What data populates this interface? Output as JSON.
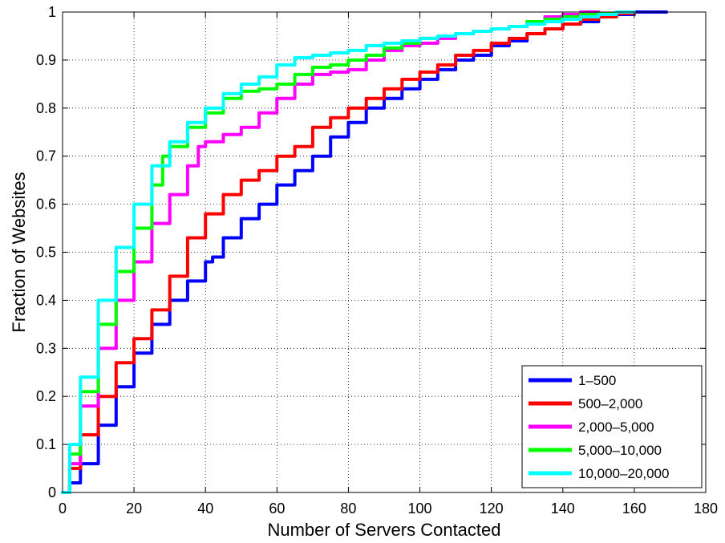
{
  "chart_data": {
    "type": "line",
    "title": "",
    "xlabel": "Number of Servers Contacted",
    "ylabel": "Fraction of Websites",
    "xlim": [
      0,
      180
    ],
    "ylim": [
      0,
      1
    ],
    "xticks": [
      0,
      20,
      40,
      60,
      80,
      100,
      120,
      140,
      160,
      180
    ],
    "yticks": [
      0,
      0.1,
      0.2,
      0.3,
      0.4,
      0.5,
      0.6,
      0.7,
      0.8,
      0.9,
      1
    ],
    "xtick_labels": [
      "0",
      "20",
      "40",
      "60",
      "80",
      "100",
      "120",
      "140",
      "160",
      "180"
    ],
    "ytick_labels": [
      "0",
      "0.1",
      "0.2",
      "0.3",
      "0.4",
      "0.5",
      "0.6",
      "0.7",
      "0.8",
      "0.9",
      "1"
    ],
    "grid": true,
    "legend_position": "bottom-right",
    "series": [
      {
        "name": "1–500",
        "color": "#0000ff",
        "points": [
          [
            0,
            0
          ],
          [
            2,
            0.02
          ],
          [
            5,
            0.06
          ],
          [
            10,
            0.14
          ],
          [
            15,
            0.22
          ],
          [
            20,
            0.29
          ],
          [
            25,
            0.35
          ],
          [
            30,
            0.4
          ],
          [
            35,
            0.44
          ],
          [
            40,
            0.48
          ],
          [
            42,
            0.49
          ],
          [
            45,
            0.53
          ],
          [
            50,
            0.57
          ],
          [
            55,
            0.6
          ],
          [
            60,
            0.64
          ],
          [
            65,
            0.67
          ],
          [
            70,
            0.7
          ],
          [
            75,
            0.74
          ],
          [
            80,
            0.77
          ],
          [
            85,
            0.8
          ],
          [
            90,
            0.82
          ],
          [
            95,
            0.84
          ],
          [
            100,
            0.86
          ],
          [
            105,
            0.88
          ],
          [
            110,
            0.9
          ],
          [
            115,
            0.91
          ],
          [
            120,
            0.93
          ],
          [
            125,
            0.94
          ],
          [
            130,
            0.955
          ],
          [
            135,
            0.965
          ],
          [
            140,
            0.975
          ],
          [
            145,
            0.98
          ],
          [
            150,
            0.99
          ],
          [
            155,
            0.995
          ],
          [
            160,
            1.0
          ],
          [
            169,
            1.0
          ]
        ]
      },
      {
        "name": "500–2,000",
        "color": "#ff0000",
        "points": [
          [
            0,
            0
          ],
          [
            2,
            0.05
          ],
          [
            5,
            0.12
          ],
          [
            10,
            0.2
          ],
          [
            15,
            0.27
          ],
          [
            20,
            0.32
          ],
          [
            25,
            0.38
          ],
          [
            30,
            0.45
          ],
          [
            35,
            0.53
          ],
          [
            40,
            0.58
          ],
          [
            45,
            0.62
          ],
          [
            50,
            0.65
          ],
          [
            55,
            0.67
          ],
          [
            60,
            0.7
          ],
          [
            65,
            0.72
          ],
          [
            70,
            0.76
          ],
          [
            75,
            0.78
          ],
          [
            80,
            0.8
          ],
          [
            85,
            0.82
          ],
          [
            90,
            0.84
          ],
          [
            95,
            0.86
          ],
          [
            100,
            0.875
          ],
          [
            105,
            0.89
          ],
          [
            110,
            0.91
          ],
          [
            115,
            0.92
          ],
          [
            120,
            0.935
          ],
          [
            125,
            0.945
          ],
          [
            130,
            0.955
          ],
          [
            135,
            0.965
          ],
          [
            140,
            0.975
          ],
          [
            145,
            0.985
          ],
          [
            150,
            0.99
          ],
          [
            155,
            0.997
          ],
          [
            160,
            1.0
          ]
        ]
      },
      {
        "name": "2,000–5,000",
        "color": "#ff00ff",
        "points": [
          [
            0,
            0
          ],
          [
            2,
            0.06
          ],
          [
            5,
            0.18
          ],
          [
            10,
            0.3
          ],
          [
            15,
            0.4
          ],
          [
            20,
            0.48
          ],
          [
            25,
            0.56
          ],
          [
            30,
            0.62
          ],
          [
            35,
            0.68
          ],
          [
            38,
            0.72
          ],
          [
            40,
            0.73
          ],
          [
            45,
            0.745
          ],
          [
            50,
            0.76
          ],
          [
            55,
            0.79
          ],
          [
            60,
            0.82
          ],
          [
            65,
            0.85
          ],
          [
            70,
            0.87
          ],
          [
            75,
            0.875
          ],
          [
            80,
            0.88
          ],
          [
            85,
            0.9
          ],
          [
            90,
            0.92
          ],
          [
            95,
            0.93
          ],
          [
            100,
            0.935
          ],
          [
            105,
            0.945
          ],
          [
            110,
            0.955
          ],
          [
            115,
            0.96
          ],
          [
            120,
            0.965
          ],
          [
            125,
            0.97
          ],
          [
            130,
            0.98
          ],
          [
            135,
            0.99
          ],
          [
            140,
            0.995
          ],
          [
            145,
            1.0
          ],
          [
            150,
            1.0
          ]
        ]
      },
      {
        "name": "5,000–10,000",
        "color": "#00ff00",
        "points": [
          [
            0,
            0
          ],
          [
            2,
            0.08
          ],
          [
            5,
            0.21
          ],
          [
            10,
            0.35
          ],
          [
            15,
            0.46
          ],
          [
            20,
            0.55
          ],
          [
            25,
            0.64
          ],
          [
            28,
            0.7
          ],
          [
            30,
            0.72
          ],
          [
            35,
            0.76
          ],
          [
            40,
            0.79
          ],
          [
            45,
            0.82
          ],
          [
            50,
            0.835
          ],
          [
            55,
            0.84
          ],
          [
            60,
            0.85
          ],
          [
            65,
            0.87
          ],
          [
            70,
            0.885
          ],
          [
            75,
            0.89
          ],
          [
            80,
            0.9
          ],
          [
            85,
            0.91
          ],
          [
            90,
            0.925
          ],
          [
            95,
            0.935
          ],
          [
            100,
            0.945
          ],
          [
            105,
            0.95
          ],
          [
            110,
            0.955
          ],
          [
            115,
            0.96
          ],
          [
            120,
            0.965
          ],
          [
            125,
            0.97
          ],
          [
            130,
            0.98
          ],
          [
            135,
            0.985
          ],
          [
            140,
            0.99
          ],
          [
            145,
            0.995
          ],
          [
            150,
            0.997
          ],
          [
            155,
            1.0
          ]
        ]
      },
      {
        "name": "10,000–20,000",
        "color": "#00ffff",
        "points": [
          [
            0,
            0
          ],
          [
            2,
            0.1
          ],
          [
            5,
            0.24
          ],
          [
            10,
            0.4
          ],
          [
            15,
            0.51
          ],
          [
            20,
            0.6
          ],
          [
            25,
            0.68
          ],
          [
            30,
            0.73
          ],
          [
            35,
            0.77
          ],
          [
            40,
            0.8
          ],
          [
            45,
            0.83
          ],
          [
            50,
            0.85
          ],
          [
            55,
            0.865
          ],
          [
            60,
            0.89
          ],
          [
            65,
            0.905
          ],
          [
            70,
            0.91
          ],
          [
            75,
            0.915
          ],
          [
            80,
            0.92
          ],
          [
            85,
            0.93
          ],
          [
            90,
            0.935
          ],
          [
            95,
            0.94
          ],
          [
            100,
            0.945
          ],
          [
            105,
            0.95
          ],
          [
            110,
            0.955
          ],
          [
            115,
            0.96
          ],
          [
            120,
            0.965
          ],
          [
            125,
            0.97
          ],
          [
            130,
            0.975
          ],
          [
            135,
            0.98
          ],
          [
            140,
            0.985
          ],
          [
            145,
            0.99
          ],
          [
            150,
            0.995
          ],
          [
            155,
            1.0
          ],
          [
            160,
            1.0
          ]
        ]
      }
    ]
  }
}
